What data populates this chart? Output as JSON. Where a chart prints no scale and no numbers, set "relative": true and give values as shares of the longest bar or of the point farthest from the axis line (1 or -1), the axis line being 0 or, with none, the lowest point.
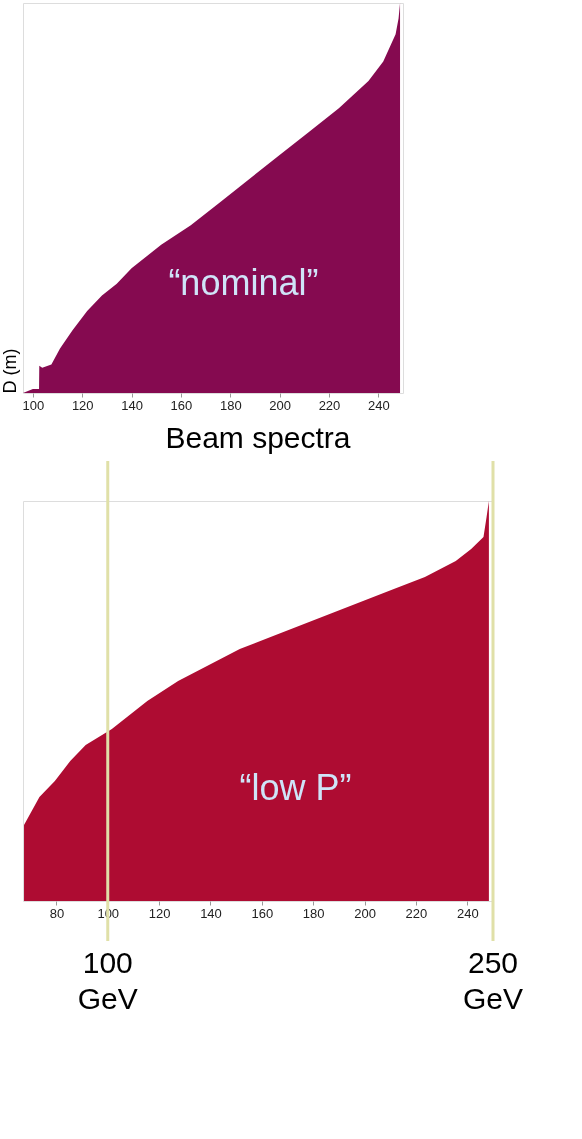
{
  "chart_data": [
    {
      "type": "area",
      "relative": true,
      "ylabel": "D (m)",
      "xlim": [
        96,
        250
      ],
      "xticks": [
        100,
        120,
        140,
        160,
        180,
        200,
        220,
        240
      ],
      "tick_labels": "x",
      "grid": false,
      "legend": false,
      "series": [
        {
          "name": "“nominal”",
          "color": "#850a50",
          "x": [
            96,
            100,
            102.5,
            102.6,
            103.8,
            107.5,
            111,
            116,
            122,
            128,
            134,
            140,
            146,
            152,
            164,
            176,
            188,
            200,
            212,
            224,
            236,
            242,
            247,
            248.2,
            248.8
          ],
          "values": [
            0,
            0.01,
            0.01,
            0.07,
            0.065,
            0.073,
            0.114,
            0.16,
            0.21,
            0.25,
            0.28,
            0.32,
            0.35,
            0.38,
            0.43,
            0.49,
            0.55,
            0.61,
            0.67,
            0.73,
            0.8,
            0.85,
            0.92,
            0.96,
            1.0
          ]
        }
      ]
    },
    {
      "type": "area",
      "relative": true,
      "title": "Beam spectra",
      "xlim": [
        67,
        250
      ],
      "xticks": [
        80,
        100,
        120,
        140,
        160,
        180,
        200,
        220,
        240
      ],
      "tick_labels": "x",
      "grid": false,
      "legend": false,
      "series": [
        {
          "name": "“low P”",
          "color": "#ae0c32",
          "x": [
            67.4,
            73.4,
            79.4,
            85.4,
            91.4,
            101.6,
            115.4,
            127.4,
            139.4,
            151.4,
            163.4,
            175.4,
            187.4,
            199.4,
            211.4,
            223.5,
            235.5,
            241.5,
            246.3,
            247.5,
            248.4
          ],
          "values": [
            0.19,
            0.26,
            0.3,
            0.35,
            0.39,
            0.43,
            0.5,
            0.55,
            0.59,
            0.63,
            0.66,
            0.69,
            0.72,
            0.75,
            0.78,
            0.81,
            0.85,
            0.88,
            0.91,
            0.96,
            1.0
          ]
        }
      ],
      "ref_lines": [
        {
          "axis": "x",
          "value": 100,
          "label": "100 GeV",
          "color": "#e0e0a8"
        },
        {
          "axis": "x",
          "value": 250,
          "label": "250 GeV",
          "color": "#e0e0a8"
        }
      ]
    }
  ]
}
